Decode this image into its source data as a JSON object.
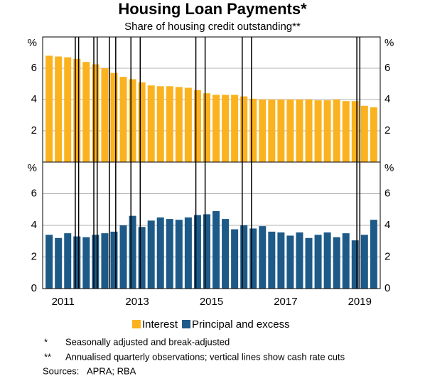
{
  "title": "Housing Loan Payments*",
  "subtitle": "Share of housing credit outstanding**",
  "notes": [
    {
      "mark": "*",
      "text": "Seasonally adjusted and break-adjusted"
    },
    {
      "mark": "**",
      "text": "Annualised quarterly observations; vertical lines show cash rate cuts"
    }
  ],
  "sources": {
    "label": "Sources:",
    "text": "APRA; RBA"
  },
  "rate_cuts": [
    2011.83,
    2011.92,
    2012.33,
    2012.42,
    2012.75,
    2012.92,
    2013.33,
    2013.58,
    2015.08,
    2015.33,
    2016.33,
    2016.58,
    2019.42,
    2019.5
  ],
  "chart_data": [
    {
      "type": "bar",
      "unit": "%",
      "x": [
        2011.125,
        2011.375,
        2011.625,
        2011.875,
        2012.125,
        2012.375,
        2012.625,
        2012.875,
        2013.125,
        2013.375,
        2013.625,
        2013.875,
        2014.125,
        2014.375,
        2014.625,
        2014.875,
        2015.125,
        2015.375,
        2015.625,
        2015.875,
        2016.125,
        2016.375,
        2016.625,
        2016.875,
        2017.125,
        2017.375,
        2017.625,
        2017.875,
        2018.125,
        2018.375,
        2018.625,
        2018.875,
        2019.125,
        2019.375,
        2019.625,
        2019.875
      ],
      "xlim": [
        2010.95,
        2020.05
      ],
      "series": [
        {
          "name": "Interest",
          "color": "#fbb21f",
          "values": [
            6.8,
            6.75,
            6.7,
            6.6,
            6.4,
            6.25,
            6.0,
            5.7,
            5.45,
            5.3,
            5.1,
            4.9,
            4.85,
            4.85,
            4.8,
            4.75,
            4.6,
            4.4,
            4.3,
            4.3,
            4.3,
            4.2,
            4.05,
            4.0,
            4.0,
            4.0,
            4.0,
            4.0,
            4.0,
            3.95,
            3.95,
            4.0,
            3.9,
            3.9,
            3.6,
            3.5
          ]
        }
      ],
      "ylim": [
        0,
        8
      ],
      "yticks": [
        2,
        4,
        6
      ],
      "y2ticks": [
        2,
        4,
        6
      ],
      "grid": true
    },
    {
      "type": "bar",
      "unit": "%",
      "x": [
        2011.125,
        2011.375,
        2011.625,
        2011.875,
        2012.125,
        2012.375,
        2012.625,
        2012.875,
        2013.125,
        2013.375,
        2013.625,
        2013.875,
        2014.125,
        2014.375,
        2014.625,
        2014.875,
        2015.125,
        2015.375,
        2015.625,
        2015.875,
        2016.125,
        2016.375,
        2016.625,
        2016.875,
        2017.125,
        2017.375,
        2017.625,
        2017.875,
        2018.125,
        2018.375,
        2018.625,
        2018.875,
        2019.125,
        2019.375,
        2019.625,
        2019.875
      ],
      "xlim": [
        2010.95,
        2020.05
      ],
      "xticks": [
        {
          "value": 2011.5,
          "label": "2011"
        },
        {
          "value": 2013.5,
          "label": "2013"
        },
        {
          "value": 2015.5,
          "label": "2015"
        },
        {
          "value": 2017.5,
          "label": "2017"
        },
        {
          "value": 2019.5,
          "label": "2019"
        }
      ],
      "series": [
        {
          "name": "Principal and excess",
          "color": "#1d5a87",
          "values": [
            3.4,
            3.2,
            3.5,
            3.3,
            3.25,
            3.4,
            3.5,
            3.6,
            4.0,
            4.6,
            3.9,
            4.3,
            4.5,
            4.4,
            4.35,
            4.5,
            4.65,
            4.7,
            4.9,
            4.4,
            3.75,
            4.0,
            3.8,
            3.95,
            3.6,
            3.55,
            3.35,
            3.55,
            3.2,
            3.4,
            3.55,
            3.25,
            3.5,
            3.05,
            3.4,
            4.35
          ]
        }
      ],
      "ylim": [
        0,
        8
      ],
      "yticks": [
        0,
        2,
        4,
        6
      ],
      "y2ticks": [
        0,
        2,
        4,
        6
      ],
      "grid": true
    }
  ]
}
